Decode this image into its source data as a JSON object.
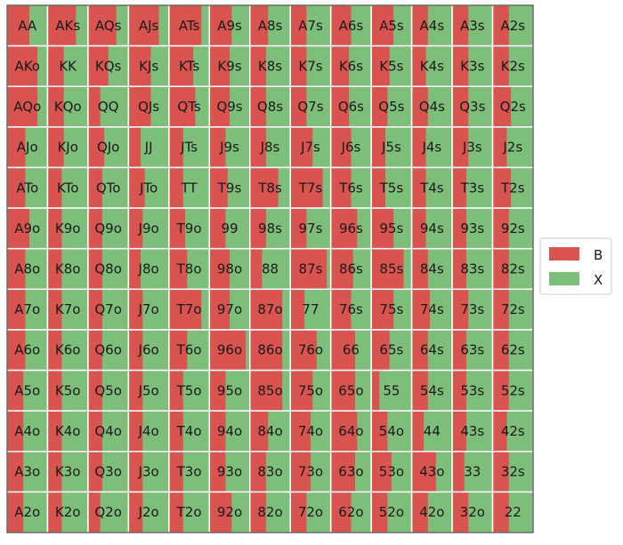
{
  "chart_data": {
    "type": "heatmap",
    "subtype": "poker-range-grid",
    "rows": [
      "A",
      "K",
      "Q",
      "J",
      "T",
      "9",
      "8",
      "7",
      "6",
      "5",
      "4",
      "3",
      "2"
    ],
    "cols": [
      "A",
      "K",
      "Q",
      "J",
      "T",
      "9",
      "8",
      "7",
      "6",
      "5",
      "4",
      "3",
      "2"
    ],
    "labels": [
      [
        "AA",
        "AKs",
        "AQs",
        "AJs",
        "ATs",
        "A9s",
        "A8s",
        "A7s",
        "A6s",
        "A5s",
        "A4s",
        "A3s",
        "A2s"
      ],
      [
        "AKo",
        "KK",
        "KQs",
        "KJs",
        "KTs",
        "K9s",
        "K8s",
        "K7s",
        "K6s",
        "K5s",
        "K4s",
        "K3s",
        "K2s"
      ],
      [
        "AQo",
        "KQo",
        "QQ",
        "QJs",
        "QTs",
        "Q9s",
        "Q8s",
        "Q7s",
        "Q6s",
        "Q5s",
        "Q4s",
        "Q3s",
        "Q2s"
      ],
      [
        "AJo",
        "KJo",
        "QJo",
        "JJ",
        "JTs",
        "J9s",
        "J8s",
        "J7s",
        "J6s",
        "J5s",
        "J4s",
        "J3s",
        "J2s"
      ],
      [
        "ATo",
        "KTo",
        "QTo",
        "JTo",
        "TT",
        "T9s",
        "T8s",
        "T7s",
        "T6s",
        "T5s",
        "T4s",
        "T3s",
        "T2s"
      ],
      [
        "A9o",
        "K9o",
        "Q9o",
        "J9o",
        "T9o",
        "99",
        "98s",
        "97s",
        "96s",
        "95s",
        "94s",
        "93s",
        "92s"
      ],
      [
        "A8o",
        "K8o",
        "Q8o",
        "J8o",
        "T8o",
        "98o",
        "88",
        "87s",
        "86s",
        "85s",
        "84s",
        "83s",
        "82s"
      ],
      [
        "A7o",
        "K7o",
        "Q7o",
        "J7o",
        "T7o",
        "97o",
        "87o",
        "77",
        "76s",
        "75s",
        "74s",
        "73s",
        "72s"
      ],
      [
        "A6o",
        "K6o",
        "Q6o",
        "J6o",
        "T6o",
        "96o",
        "86o",
        "76o",
        "66",
        "65s",
        "64s",
        "63s",
        "62s"
      ],
      [
        "A5o",
        "K5o",
        "Q5o",
        "J5o",
        "T5o",
        "95o",
        "85o",
        "75o",
        "65o",
        "55",
        "54s",
        "53s",
        "52s"
      ],
      [
        "A4o",
        "K4o",
        "Q4o",
        "J4o",
        "T4o",
        "94o",
        "84o",
        "74o",
        "64o",
        "54o",
        "44",
        "43s",
        "42s"
      ],
      [
        "A3o",
        "K3o",
        "Q3o",
        "J3o",
        "T3o",
        "93o",
        "83o",
        "73o",
        "63o",
        "53o",
        "43o",
        "33",
        "32s"
      ],
      [
        "A2o",
        "K2o",
        "Q2o",
        "J2o",
        "T2o",
        "92o",
        "82o",
        "72o",
        "62o",
        "52o",
        "42o",
        "32o",
        "22"
      ]
    ],
    "b_frequency": [
      [
        0.55,
        0.7,
        0.7,
        0.75,
        0.8,
        0.55,
        0.45,
        0.4,
        0.5,
        0.55,
        0.4,
        0.4,
        0.4
      ],
      [
        0.75,
        0.4,
        0.5,
        0.55,
        0.6,
        0.5,
        0.4,
        0.4,
        0.45,
        0.45,
        0.35,
        0.4,
        0.4
      ],
      [
        0.75,
        0.4,
        0.3,
        0.55,
        0.65,
        0.5,
        0.4,
        0.4,
        0.45,
        0.4,
        0.4,
        0.4,
        0.45
      ],
      [
        0.45,
        0.4,
        0.4,
        0.3,
        0.35,
        0.4,
        0.4,
        0.55,
        0.5,
        0.35,
        0.35,
        0.4,
        0.35
      ],
      [
        0.45,
        0.35,
        0.35,
        0.4,
        0.35,
        0.45,
        0.7,
        0.8,
        0.5,
        0.35,
        0.35,
        0.35,
        0.45
      ],
      [
        0.55,
        0.35,
        0.35,
        0.35,
        0.4,
        0.4,
        0.4,
        0.4,
        0.65,
        0.55,
        0.35,
        0.35,
        0.4
      ],
      [
        0.45,
        0.35,
        0.35,
        0.3,
        0.45,
        0.5,
        0.3,
        0.9,
        0.55,
        0.8,
        0.4,
        0.35,
        0.4
      ],
      [
        0.45,
        0.35,
        0.35,
        0.35,
        0.8,
        0.5,
        0.8,
        0.35,
        0.5,
        0.55,
        0.45,
        0.4,
        0.4
      ],
      [
        0.45,
        0.35,
        0.35,
        0.35,
        0.45,
        0.9,
        0.8,
        0.65,
        0.6,
        0.45,
        0.4,
        0.35,
        0.4
      ],
      [
        0.4,
        0.35,
        0.35,
        0.35,
        0.35,
        0.4,
        0.8,
        0.55,
        0.6,
        0.2,
        0.4,
        0.35,
        0.4
      ],
      [
        0.4,
        0.35,
        0.35,
        0.35,
        0.35,
        0.4,
        0.45,
        0.5,
        0.65,
        0.4,
        0.3,
        0.35,
        0.35
      ],
      [
        0.4,
        0.35,
        0.35,
        0.35,
        0.35,
        0.4,
        0.4,
        0.5,
        0.6,
        0.5,
        0.6,
        0.3,
        0.4
      ],
      [
        0.4,
        0.35,
        0.3,
        0.35,
        0.35,
        0.55,
        0.4,
        0.4,
        0.5,
        0.4,
        0.4,
        0.4,
        0.4
      ]
    ],
    "series": [
      {
        "name": "B",
        "color": "#d9534f"
      },
      {
        "name": "X",
        "color": "#7dbf7a"
      }
    ],
    "legend_position": "right",
    "grid": true
  }
}
